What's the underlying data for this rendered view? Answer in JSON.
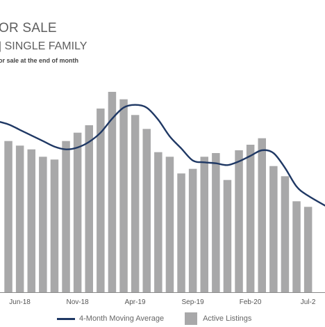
{
  "header": {
    "title": "OR SALE",
    "subtitle": "| SINGLE FAMILY",
    "note": "or sale at the end of month"
  },
  "colors": {
    "bar": "#a8a8a9",
    "line": "#1f3864",
    "axis": "#888888"
  },
  "chart_data": {
    "type": "bar",
    "x_tick_labels": [
      "Jun-18",
      "Nov-18",
      "Apr-19",
      "Sep-19",
      "Feb-20",
      "Jul-2"
    ],
    "series": [
      {
        "name": "Active Listings",
        "type": "bar",
        "values": [
          163,
          158,
          154,
          146,
          143,
          163,
          172,
          180,
          198,
          216,
          208,
          191,
          176,
          151,
          146,
          128,
          133,
          146,
          150,
          121,
          153,
          159,
          166,
          136,
          125,
          98,
          92
        ]
      },
      {
        "name": "4-Month Moving Average",
        "type": "line",
        "values": [
          181,
          175,
          169,
          163,
          157,
          154,
          156,
          162,
          172,
          187,
          199,
          202,
          199,
          186,
          168,
          155,
          142,
          140,
          139,
          137,
          141,
          147,
          153,
          150,
          134,
          114,
          104
        ]
      }
    ],
    "legend": {
      "position": "bottom",
      "items": [
        "4-Month Moving Average",
        "Active Listings"
      ]
    },
    "ylim": [
      0,
      240
    ],
    "grid": false
  }
}
